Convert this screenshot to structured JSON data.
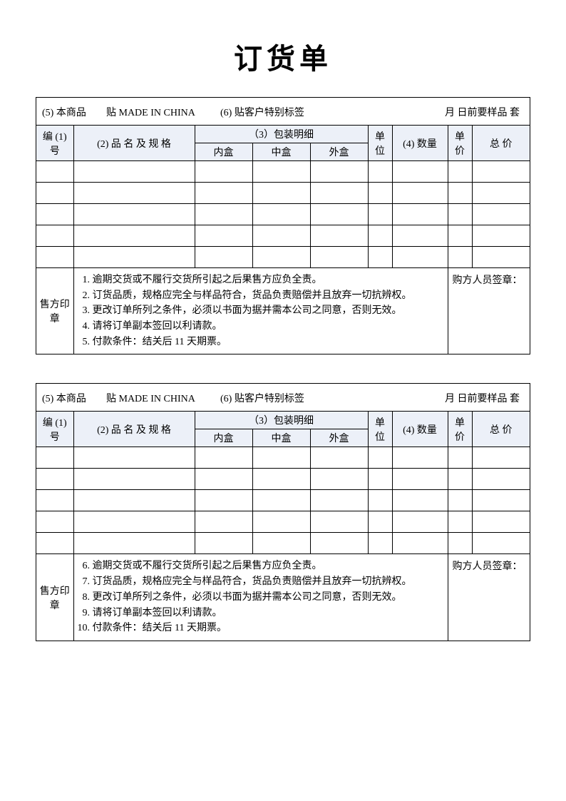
{
  "page_title": "订货单",
  "top_info": {
    "seg1": "(5) 本商品",
    "seg2": "贴 MADE IN CHINA",
    "seg3": "(6) 贴客户特别标签",
    "seg4": "月 日前要样品   套"
  },
  "headers": {
    "id": "编 (1) 号",
    "name": "(2) 品 名 及 规 格",
    "packing": "（3）包装明细",
    "pack_inner": "内盒",
    "pack_mid": "中盒",
    "pack_outer": "外盒",
    "unit": "单位",
    "qty": "(4) 数量",
    "price": "单价",
    "total": "总 价"
  },
  "seller_seal_label": "售方印章",
  "buyer_sign_label": "购方人员签章：",
  "terms_block1": [
    "逾期交货或不履行交货所引起之后果售方应负全责。",
    "订货品质，规格应完全与样品符合，货品负责赔偿并且放弃一切抗辨权。",
    "更改订单所列之条件，必须以书面为据并需本公司之同意，否则无效。",
    "请将订单副本签回以利请款。",
    "付款条件：结关后 11 天期票。"
  ],
  "terms_block2": [
    "逾期交货或不履行交货所引起之后果售方应负全责。",
    "订货品质，规格应完全与样品符合，货品负责赔偿并且放弃一切抗辨权。",
    "更改订单所列之条件，必须以书面为据并需本公司之同意，否则无效。",
    "请将订单副本签回以利请款。",
    "付款条件：结关后 11 天期票。"
  ],
  "terms_start1": 1,
  "terms_start2": 6,
  "style": {
    "header_bg": "#ecf0f8",
    "border_color": "#000000",
    "title_fontsize": 40,
    "body_fontsize": 14
  }
}
